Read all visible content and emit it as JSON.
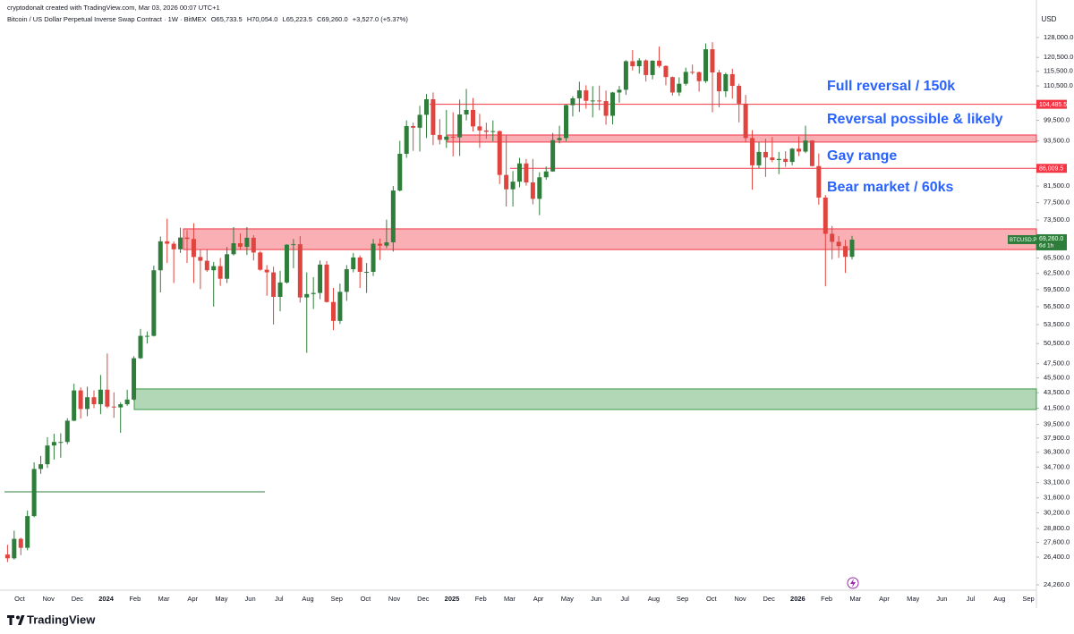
{
  "chart_data": {
    "type": "candlestick",
    "credit": "cryptodonalt created with TradingView.com, Mar 03, 2026 00:07 UTC+1",
    "title": "Bitcoin / US Dollar Perpetual Inverse Swap Contract · 1W · BitMEX",
    "legend_values": [
      "O65,733.5",
      "H70,054.0",
      "L65,223.5",
      "C69,260.0",
      "+3,527.0 (+5.37%)"
    ],
    "currency": "USD",
    "log_scale": true,
    "grid": false,
    "up_color": "#2f7d3b",
    "down_color": "#e0443e",
    "ylim": [
      23870,
      136600
    ],
    "yticks": [
      {
        "value": 128000,
        "label": "128,000.0"
      },
      {
        "value": 120500,
        "label": "120,500.0"
      },
      {
        "value": 115500,
        "label": "115,500.0"
      },
      {
        "value": 110500,
        "label": "110,500.0"
      },
      {
        "value": 99500,
        "label": "99,500.0"
      },
      {
        "value": 93500,
        "label": "93,500.0"
      },
      {
        "value": 81500,
        "label": "81,500.0"
      },
      {
        "value": 77500,
        "label": "77,500.0"
      },
      {
        "value": 73500,
        "label": "73,500.0"
      },
      {
        "value": 65500,
        "label": "65,500.0"
      },
      {
        "value": 62500,
        "label": "62,500.0"
      },
      {
        "value": 59500,
        "label": "59,500.0"
      },
      {
        "value": 56500,
        "label": "56,500.0"
      },
      {
        "value": 53500,
        "label": "53,500.0"
      },
      {
        "value": 50500,
        "label": "50,500.0"
      },
      {
        "value": 47500,
        "label": "47,500.0"
      },
      {
        "value": 45500,
        "label": "45,500.0"
      },
      {
        "value": 43500,
        "label": "43,500.0"
      },
      {
        "value": 41500,
        "label": "41,500.0"
      },
      {
        "value": 39500,
        "label": "39,500.0"
      },
      {
        "value": 37900,
        "label": "37,900.0"
      },
      {
        "value": 36300,
        "label": "36,300.0"
      },
      {
        "value": 34700,
        "label": "34,700.0"
      },
      {
        "value": 33100,
        "label": "33,100.0"
      },
      {
        "value": 31600,
        "label": "31,600.0"
      },
      {
        "value": 30200,
        "label": "30,200.0"
      },
      {
        "value": 28800,
        "label": "28,800.0"
      },
      {
        "value": 27600,
        "label": "27,600.0"
      },
      {
        "value": 26400,
        "label": "26,400.0"
      },
      {
        "value": 24260,
        "label": "24,260.0"
      }
    ],
    "x_labels": [
      "Oct",
      "Nov",
      "Dec",
      "2024",
      "Feb",
      "Mar",
      "Apr",
      "May",
      "Jun",
      "Jul",
      "Aug",
      "Sep",
      "Oct",
      "Nov",
      "Dec",
      "2025",
      "Feb",
      "Mar",
      "Apr",
      "May",
      "Jun",
      "Jul",
      "Aug",
      "Sep",
      "Oct",
      "Nov",
      "Dec",
      "2026",
      "Feb",
      "Mar",
      "Apr",
      "May",
      "Jun",
      "Jul",
      "Aug",
      "Sep"
    ],
    "candles": [
      [
        26600,
        27400,
        26000,
        26300
      ],
      [
        26300,
        28600,
        26200,
        27900
      ],
      [
        27900,
        28000,
        26550,
        27150
      ],
      [
        27150,
        30400,
        26950,
        29900
      ],
      [
        29900,
        35200,
        29800,
        34500
      ],
      [
        34500,
        35900,
        34000,
        35000
      ],
      [
        35000,
        38000,
        34600,
        37050
      ],
      [
        37050,
        38400,
        35500,
        37450
      ],
      [
        37450,
        38450,
        35700,
        37450
      ],
      [
        37450,
        40250,
        37200,
        39950
      ],
      [
        39950,
        44700,
        39900,
        43800
      ],
      [
        43800,
        44200,
        40200,
        41400
      ],
      [
        41400,
        44300,
        40500,
        42900
      ],
      [
        42900,
        43800,
        41500,
        42000
      ],
      [
        42000,
        45900,
        40750,
        43900
      ],
      [
        43900,
        49000,
        41500,
        41700
      ],
      [
        41700,
        43550,
        40300,
        41600
      ],
      [
        41600,
        42250,
        38500,
        42000
      ],
      [
        42000,
        43900,
        41800,
        42600
      ],
      [
        42600,
        48600,
        42500,
        48300
      ],
      [
        48300,
        52800,
        48200,
        51700
      ],
      [
        51700,
        52400,
        50500,
        51700
      ],
      [
        51700,
        64000,
        51600,
        63100
      ],
      [
        63100,
        69900,
        59000,
        68900
      ],
      [
        68900,
        73800,
        64500,
        68400
      ],
      [
        68400,
        68900,
        60700,
        67250
      ],
      [
        67250,
        71800,
        66500,
        69700
      ],
      [
        69700,
        71300,
        64500,
        69400
      ],
      [
        69400,
        72800,
        60700,
        65700
      ],
      [
        65700,
        67200,
        59600,
        64950
      ],
      [
        64950,
        67200,
        62800,
        63100
      ],
      [
        63100,
        64700,
        56500,
        63900
      ],
      [
        63900,
        65500,
        60200,
        61500
      ],
      [
        61500,
        67700,
        60700,
        66250
      ],
      [
        66250,
        71950,
        66000,
        68500
      ],
      [
        68500,
        70600,
        67100,
        67750
      ],
      [
        67750,
        71950,
        66100,
        69650
      ],
      [
        69650,
        70200,
        65000,
        66600
      ],
      [
        66600,
        66900,
        63000,
        63200
      ],
      [
        63200,
        64100,
        58400,
        62700
      ],
      [
        62700,
        63800,
        53500,
        58200
      ],
      [
        58200,
        63000,
        55700,
        60800
      ],
      [
        60800,
        68300,
        60600,
        68200
      ],
      [
        68200,
        69400,
        63500,
        68300
      ],
      [
        68300,
        70000,
        57200,
        58100
      ],
      [
        58100,
        62700,
        49100,
        58700
      ],
      [
        58700,
        61800,
        56100,
        58900
      ],
      [
        58900,
        65000,
        57800,
        64200
      ],
      [
        64200,
        64900,
        57200,
        57300
      ],
      [
        57300,
        59800,
        52600,
        54100
      ],
      [
        54100,
        60600,
        53600,
        59100
      ],
      [
        59100,
        64100,
        57500,
        63300
      ],
      [
        63300,
        66500,
        62700,
        65600
      ],
      [
        65600,
        66000,
        59800,
        62800
      ],
      [
        62800,
        64500,
        58900,
        62800
      ],
      [
        62800,
        69400,
        62000,
        68400
      ],
      [
        68400,
        69500,
        65100,
        68000
      ],
      [
        68000,
        73600,
        67500,
        68700
      ],
      [
        68700,
        81500,
        66800,
        80400
      ],
      [
        80400,
        93500,
        80200,
        89900
      ],
      [
        89900,
        99500,
        88800,
        97800
      ],
      [
        97800,
        98800,
        90700,
        97300
      ],
      [
        97300,
        104000,
        90500,
        101200
      ],
      [
        101200,
        107800,
        94300,
        106100
      ],
      [
        106100,
        108300,
        92300,
        95200
      ],
      [
        95200,
        99900,
        92500,
        93800
      ],
      [
        93800,
        102700,
        91500,
        94700
      ],
      [
        94700,
        102000,
        89200,
        94500
      ],
      [
        94500,
        106000,
        89300,
        101300
      ],
      [
        101300,
        109500,
        99500,
        102700
      ],
      [
        102700,
        106500,
        96200,
        97700
      ],
      [
        97700,
        101500,
        91500,
        96500
      ],
      [
        96500,
        98800,
        94100,
        96100
      ],
      [
        96100,
        99500,
        93400,
        96300
      ],
      [
        96300,
        96500,
        82000,
        84300
      ],
      [
        84300,
        95000,
        76600,
        80700
      ],
      [
        80700,
        85300,
        76600,
        82600
      ],
      [
        82600,
        88800,
        81200,
        87300
      ],
      [
        87300,
        88500,
        81600,
        82400
      ],
      [
        82400,
        88500,
        77100,
        78400
      ],
      [
        78400,
        85000,
        74600,
        83700
      ],
      [
        83700,
        86500,
        83100,
        85200
      ],
      [
        85200,
        95800,
        85100,
        93700
      ],
      [
        93700,
        97900,
        92800,
        94300
      ],
      [
        94300,
        104400,
        93400,
        104200
      ],
      [
        104200,
        107100,
        100700,
        106400
      ],
      [
        106400,
        111900,
        102100,
        109000
      ],
      [
        109000,
        110700,
        103100,
        105600
      ],
      [
        105600,
        110400,
        100400,
        105700
      ],
      [
        105700,
        110600,
        102600,
        105500
      ],
      [
        105500,
        108900,
        98200,
        100900
      ],
      [
        100900,
        108500,
        98300,
        108300
      ],
      [
        108300,
        110500,
        105000,
        109200
      ],
      [
        109200,
        119500,
        107500,
        119100
      ],
      [
        119100,
        123200,
        115800,
        117300
      ],
      [
        117300,
        120200,
        114700,
        119400
      ],
      [
        119400,
        119800,
        112000,
        114200
      ],
      [
        114200,
        119400,
        112700,
        119300
      ],
      [
        119300,
        124500,
        116800,
        117400
      ],
      [
        117400,
        117600,
        110700,
        113500
      ],
      [
        113500,
        113700,
        107300,
        108300
      ],
      [
        108300,
        113400,
        107200,
        111200
      ],
      [
        111200,
        116800,
        110600,
        115300
      ],
      [
        115300,
        117900,
        114400,
        115200
      ],
      [
        115200,
        115400,
        108600,
        112100
      ],
      [
        112100,
        125700,
        111500,
        123500
      ],
      [
        123500,
        126200,
        102000,
        115100
      ],
      [
        115100,
        116000,
        103500,
        108700
      ],
      [
        108700,
        115000,
        106800,
        114500
      ],
      [
        114500,
        116400,
        106300,
        110500
      ],
      [
        110500,
        111200,
        98900,
        104700
      ],
      [
        104700,
        107500,
        93000,
        94300
      ],
      [
        94300,
        96600,
        80600,
        86800
      ],
      [
        86800,
        93100,
        86000,
        90400
      ],
      [
        90400,
        94100,
        83800,
        88900
      ],
      [
        88900,
        94600,
        87600,
        88200
      ],
      [
        88200,
        90400,
        84500,
        88500
      ],
      [
        88500,
        90600,
        86400,
        87700
      ],
      [
        87700,
        91500,
        86800,
        91300
      ],
      [
        91300,
        94800,
        89300,
        90500
      ],
      [
        90500,
        97900,
        90100,
        93600
      ],
      [
        93600,
        93700,
        86500,
        86600
      ],
      [
        86600,
        90000,
        77000,
        78700
      ],
      [
        78700,
        79300,
        60100,
        70500
      ],
      [
        70500,
        72200,
        65200,
        68800
      ],
      [
        68800,
        70000,
        65500,
        67900
      ],
      [
        67900,
        69200,
        62600,
        65733.5
      ],
      [
        65733.5,
        70054,
        65223.5,
        69260
      ]
    ],
    "levels": [
      {
        "value": 104485.5,
        "label": "104,485.5",
        "color": "#f23645"
      },
      {
        "value": 86009.5,
        "label": "86,009.5",
        "color": "#f23645"
      },
      {
        "value": 32180,
        "color": "#2f7d3b"
      }
    ],
    "zones": [
      {
        "low": 93150,
        "high": 95180,
        "color": "#f23645"
      },
      {
        "low": 67200,
        "high": 71560,
        "color": "#f23645"
      },
      {
        "low": 41330,
        "high": 44000,
        "color": "#3d9a4a"
      }
    ],
    "annotations": [
      "Full reversal / 150k",
      "Reversal possible & likely",
      "Gay range",
      "Bear market / 60ks"
    ],
    "annotation_color": "#2962ff",
    "price_label": {
      "symbol": "BTCUSD.P",
      "value": 69260,
      "label": "69,260.0",
      "countdown": "6d 1h"
    },
    "brand": "TradingView"
  }
}
